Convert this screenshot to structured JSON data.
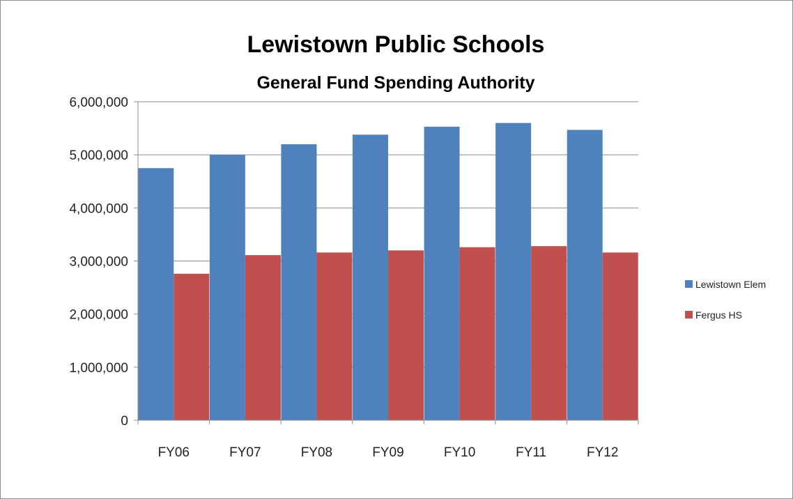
{
  "chart_data": {
    "type": "bar",
    "title": "Lewistown Public Schools",
    "subtitle": "General Fund Spending Authority",
    "xlabel": "",
    "ylabel": "",
    "categories": [
      "FY06",
      "FY07",
      "FY08",
      "FY09",
      "FY10",
      "FY11",
      "FY12"
    ],
    "series": [
      {
        "name": "Lewistown Elem",
        "color": "#4F81BD",
        "values": [
          4750000,
          5000000,
          5200000,
          5380000,
          5530000,
          5600000,
          5470000
        ]
      },
      {
        "name": "Fergus HS",
        "color": "#C0504D",
        "values": [
          2760000,
          3110000,
          3160000,
          3200000,
          3260000,
          3280000,
          3160000
        ]
      }
    ],
    "ylim": [
      0,
      6000000
    ],
    "yticks": [
      0,
      1000000,
      2000000,
      3000000,
      4000000,
      5000000,
      6000000
    ],
    "ytick_labels": [
      "0",
      "1,000,000",
      "2,000,000",
      "3,000,000",
      "4,000,000",
      "5,000,000",
      "6,000,000"
    ],
    "grid": true,
    "legend": "right"
  }
}
